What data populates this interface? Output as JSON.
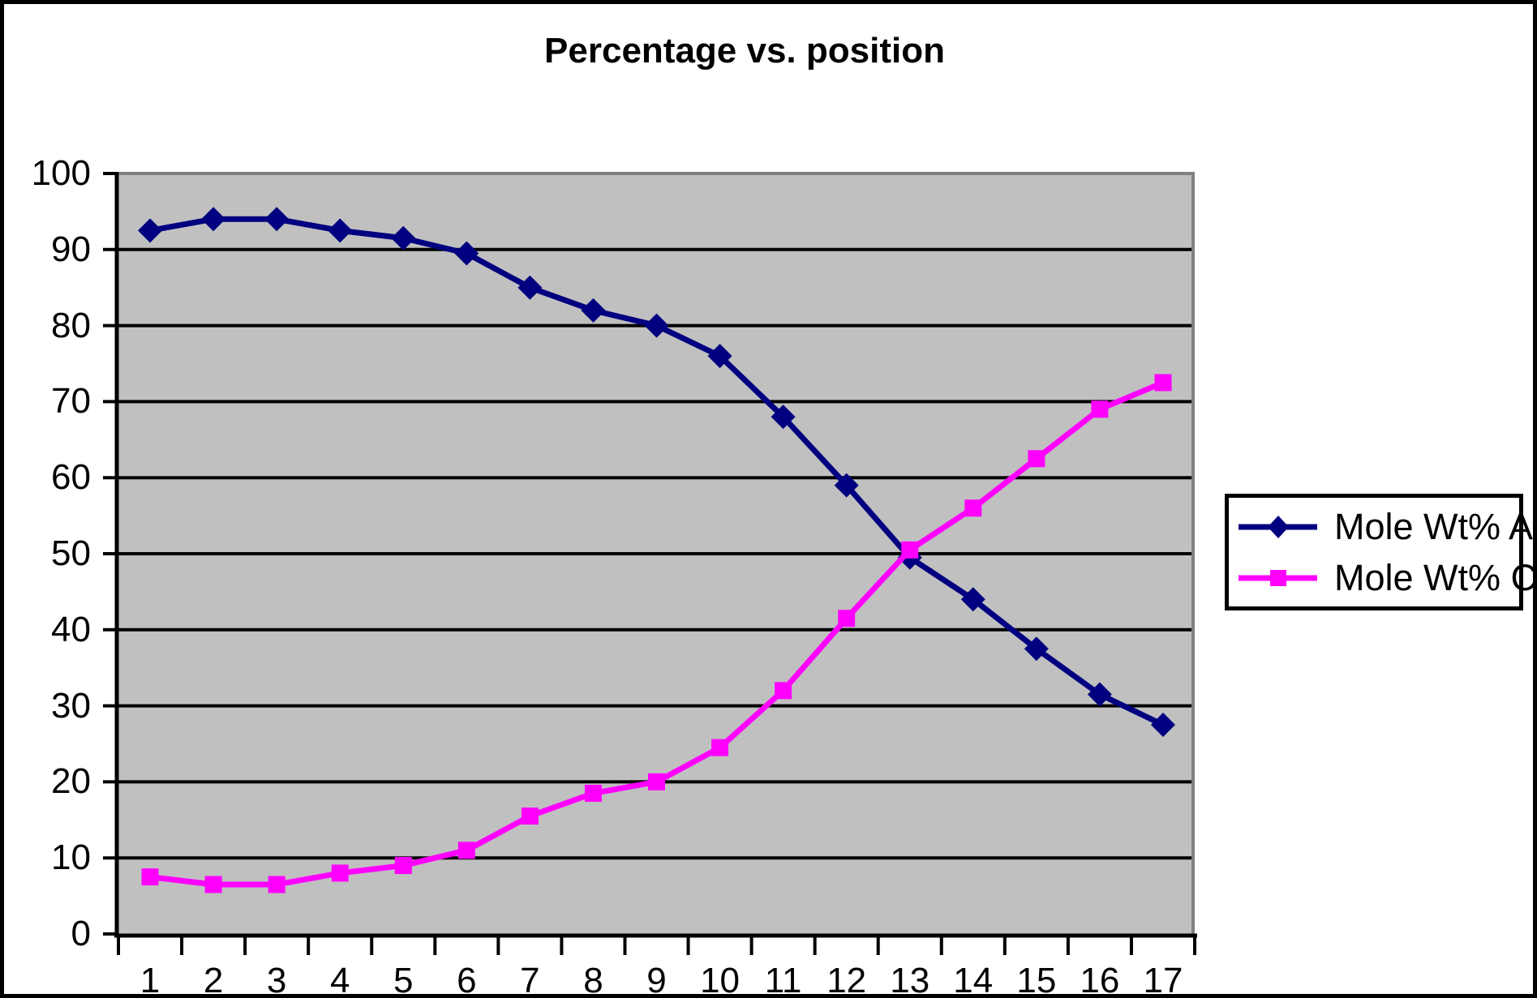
{
  "chart_data": {
    "type": "line",
    "title": "Percentage vs. position",
    "categories": [
      "1",
      "2",
      "3",
      "4",
      "5",
      "6",
      "7",
      "8",
      "9",
      "10",
      "11",
      "12",
      "13",
      "14",
      "15",
      "16",
      "17"
    ],
    "series": [
      {
        "name": "Mole Wt% Ag",
        "color": "#000080",
        "marker": "diamond",
        "values": [
          92.5,
          94,
          94,
          92.5,
          91.5,
          89.5,
          85,
          82,
          80,
          76,
          68,
          59,
          49.5,
          44,
          37.5,
          31.5,
          27.5
        ]
      },
      {
        "name": "Mole Wt% Cu",
        "color": "#FF00FF",
        "marker": "square",
        "values": [
          7.5,
          6.5,
          6.5,
          8,
          9,
          11,
          15.5,
          18.5,
          20,
          24.5,
          32,
          41.5,
          50.5,
          56,
          62.5,
          69,
          72.5
        ]
      }
    ],
    "xlabel": "",
    "ylabel": "",
    "ylim": [
      0,
      100
    ],
    "y_tick_step": 10,
    "y_tick_labels": [
      "0",
      "10",
      "20",
      "30",
      "40",
      "50",
      "60",
      "70",
      "80",
      "90",
      "100"
    ],
    "grid": true,
    "legend_position": "right",
    "colors": {
      "plot_background": "#C0C0C0",
      "gridline": "#000000",
      "plot_border_gray": "#808080",
      "axis": "#000000",
      "page_background": "#FFFFFF",
      "outer_border": "#000000",
      "text": "#000000"
    }
  }
}
